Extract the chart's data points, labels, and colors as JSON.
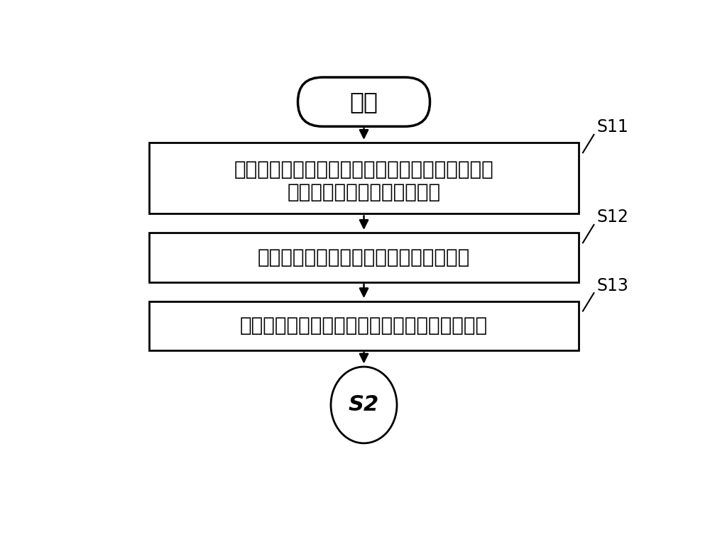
{
  "bg_color": "#ffffff",
  "start_label": "开始",
  "box1_line1": "采集数控机床的热敏感点温升、主轴转速、机床电",
  "box1_line2": "流和主轴热漂移作为样本数据",
  "box2_text": "将样本数据分为训练集样本和测试集样本",
  "box3_text": "分别对训练集样本和测试集样本进行归一化处理",
  "end_label": "S2",
  "label_s11": "S11",
  "label_s12": "S12",
  "label_s13": "S13",
  "border_color": "#000000",
  "text_color": "#000000",
  "arrow_color": "#000000",
  "font_size_main": 20,
  "font_size_label": 17,
  "font_size_start": 24
}
